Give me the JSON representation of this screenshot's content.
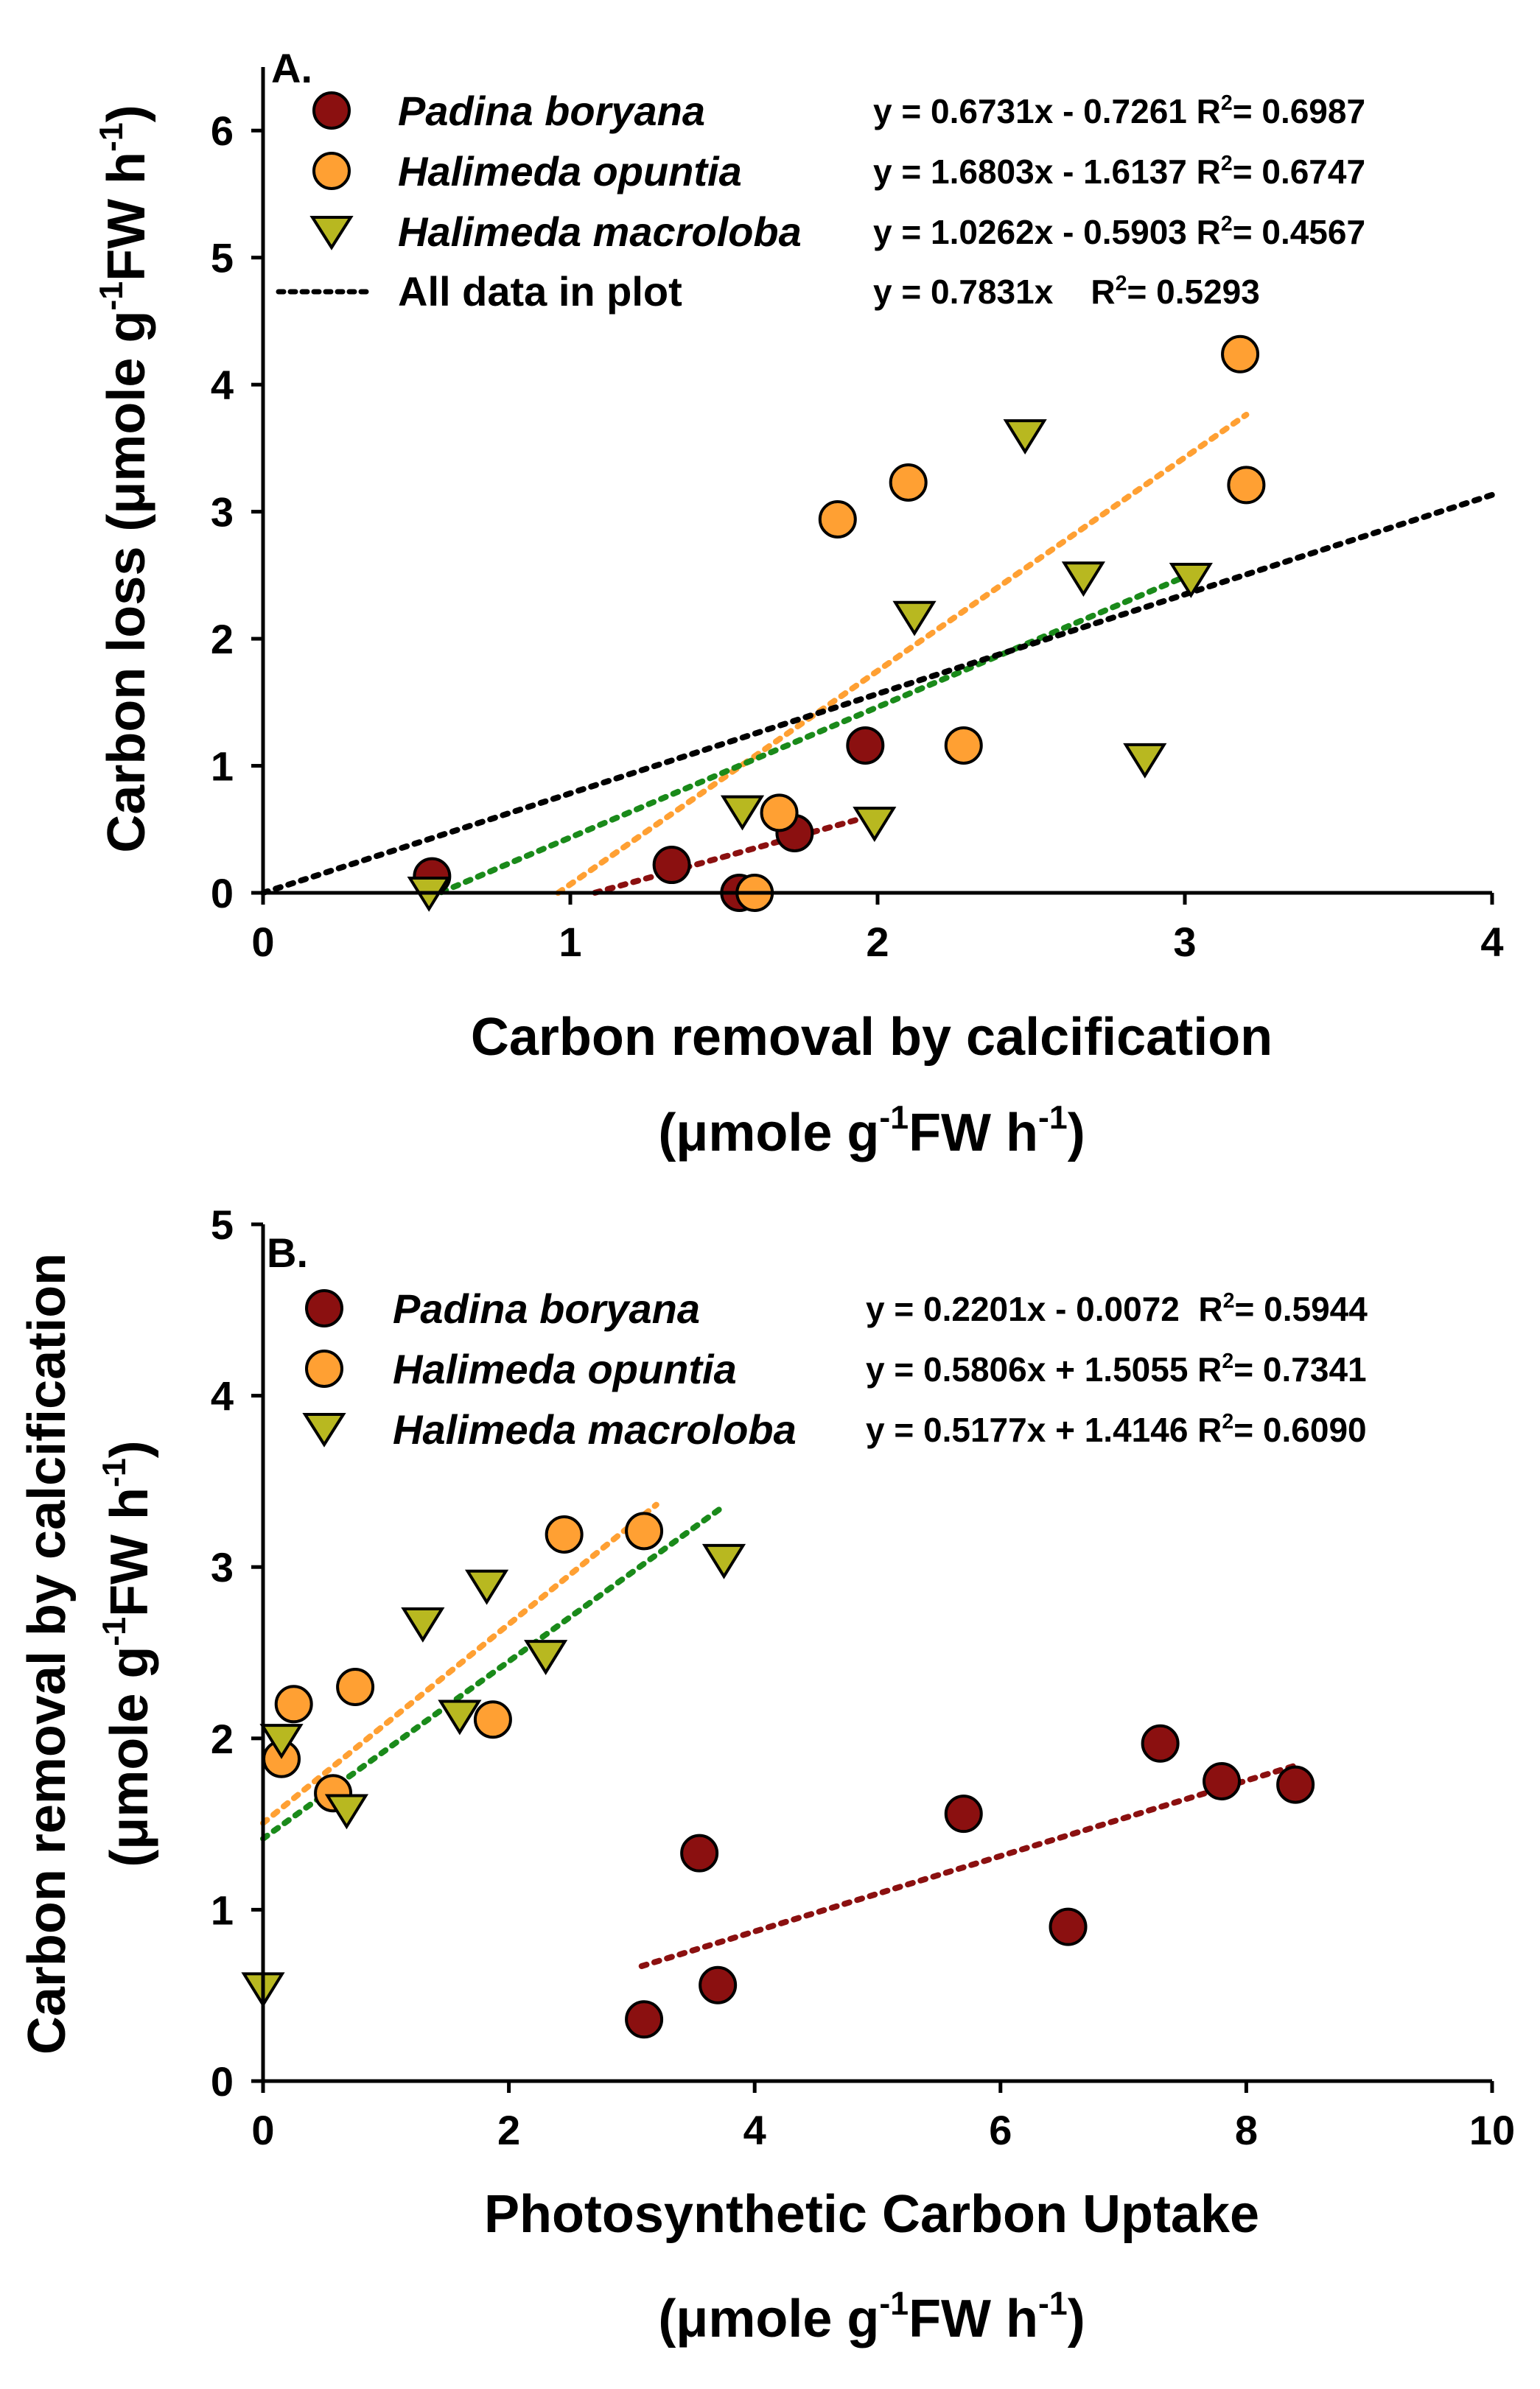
{
  "chart_data": [
    {
      "type": "scatter",
      "panel_label": "A.",
      "xlabel_line1": "Carbon removal by calcification",
      "xlabel_line2": {
        "pre": "(μmole g",
        "sup1": "-1",
        "mid": "FW h",
        "sup2": "-1",
        "post": ")"
      },
      "ylabel": {
        "pre": "Carbon loss (μmole g",
        "sup1": "-1",
        "mid": "FW h",
        "sup2": "-1",
        "post": ")"
      },
      "xlim": [
        0,
        4
      ],
      "ylim": [
        0,
        6.5
      ],
      "xticks": [
        "0",
        "1",
        "2",
        "3",
        "4"
      ],
      "yticks": [
        "0",
        "1",
        "2",
        "3",
        "4",
        "5",
        "6"
      ],
      "series": [
        {
          "name": "Padina boryana",
          "marker": "circle",
          "color": "#8B1010",
          "equation": "y = 0.6731x - 0.7261 R",
          "r2": "= 0.6987",
          "trend_range": [
            1.08,
            1.98
          ],
          "slope": 0.6731,
          "intercept": -0.7261,
          "points": [
            [
              0.55,
              0.13
            ],
            [
              1.33,
              0.22
            ],
            [
              1.55,
              0.0
            ],
            [
              1.73,
              0.47
            ],
            [
              1.96,
              1.16
            ]
          ]
        },
        {
          "name": "Halimeda opuntia",
          "marker": "circle",
          "color": "#FFA033",
          "equation": "y = 1.6803x - 1.6137 R",
          "r2": "= 0.6747",
          "trend_range": [
            0.96,
            3.2
          ],
          "slope": 1.6803,
          "intercept": -1.6137,
          "points": [
            [
              1.6,
              0.0
            ],
            [
              1.68,
              0.63
            ],
            [
              1.87,
              2.94
            ],
            [
              2.1,
              3.23
            ],
            [
              2.28,
              1.16
            ],
            [
              3.18,
              4.24
            ],
            [
              3.2,
              3.21
            ]
          ]
        },
        {
          "name": "Halimeda macroloba",
          "marker": "triangle",
          "color": "#B8B820",
          "trend_color": "#1A8A1A",
          "equation": "y = 1.0262x - 0.5903 R",
          "r2": "= 0.4567",
          "trend_range": [
            0.58,
            3.02
          ],
          "slope": 1.0262,
          "intercept": -0.5903,
          "points": [
            [
              0.54,
              0.0
            ],
            [
              1.56,
              0.64
            ],
            [
              1.99,
              0.55
            ],
            [
              2.12,
              2.17
            ],
            [
              2.48,
              3.6
            ],
            [
              2.67,
              2.48
            ],
            [
              2.87,
              1.05
            ],
            [
              3.02,
              2.47
            ]
          ]
        },
        {
          "name": "All data in plot",
          "marker": "none",
          "trend_color": "#000000",
          "equation": "y = 0.7831x    R",
          "r2": "= 0.5293",
          "trend_range": [
            0.0,
            4.0
          ],
          "slope": 0.7831,
          "intercept": 0.0,
          "points": []
        }
      ]
    },
    {
      "type": "scatter",
      "panel_label": "B.",
      "xlabel_line1": "Photosynthetic Carbon Uptake",
      "xlabel_line2": {
        "pre": "(μmole g",
        "sup1": "-1",
        "mid": "FW h",
        "sup2": "-1",
        "post": ")"
      },
      "ylabel_line1": "Carbon removal by calcification",
      "ylabel_line2": {
        "pre": "(μmole g",
        "sup1": "-1",
        "mid": "FW h",
        "sup2": "-1",
        "post": ")"
      },
      "xlim": [
        0,
        10
      ],
      "ylim": [
        0,
        5
      ],
      "xticks": [
        "0",
        "2",
        "4",
        "6",
        "8",
        "10"
      ],
      "yticks": [
        "0",
        "1",
        "2",
        "3",
        "4",
        "5"
      ],
      "series": [
        {
          "name": "Padina boryana",
          "marker": "circle",
          "color": "#8B1010",
          "equation": "y = 0.2201x - 0.0072  R",
          "r2": "= 0.5944",
          "trend_range": [
            3.08,
            8.38
          ],
          "slope": 0.2201,
          "intercept": -0.0072,
          "points": [
            [
              3.1,
              0.36
            ],
            [
              3.55,
              1.33
            ],
            [
              3.7,
              0.56
            ],
            [
              5.7,
              1.56
            ],
            [
              6.55,
              0.9
            ],
            [
              7.3,
              1.97
            ],
            [
              7.8,
              1.75
            ],
            [
              8.4,
              1.73
            ]
          ]
        },
        {
          "name": "Halimeda opuntia",
          "marker": "circle",
          "color": "#FFA033",
          "equation": "y = 0.5806x + 1.5055 R",
          "r2": "= 0.7341",
          "trend_range": [
            0.0,
            3.2
          ],
          "slope": 0.5806,
          "intercept": 1.5055,
          "points": [
            [
              0.15,
              1.88
            ],
            [
              0.25,
              2.2
            ],
            [
              0.57,
              1.68
            ],
            [
              0.75,
              2.3
            ],
            [
              1.87,
              2.11
            ],
            [
              2.45,
              3.19
            ],
            [
              3.1,
              3.21
            ]
          ]
        },
        {
          "name": "Halimeda macroloba",
          "marker": "triangle",
          "color": "#B8B820",
          "trend_color": "#1A8A1A",
          "equation": "y = 0.5177x + 1.4146 R",
          "r2": "= 0.6090",
          "trend_range": [
            0.0,
            3.75
          ],
          "slope": 0.5177,
          "intercept": 1.4146,
          "points": [
            [
              0.0,
              0.54
            ],
            [
              0.15,
              1.99
            ],
            [
              0.68,
              1.58
            ],
            [
              1.3,
              2.67
            ],
            [
              1.6,
              2.13
            ],
            [
              1.82,
              2.89
            ],
            [
              2.3,
              2.48
            ],
            [
              3.75,
              3.04
            ]
          ]
        }
      ]
    }
  ]
}
